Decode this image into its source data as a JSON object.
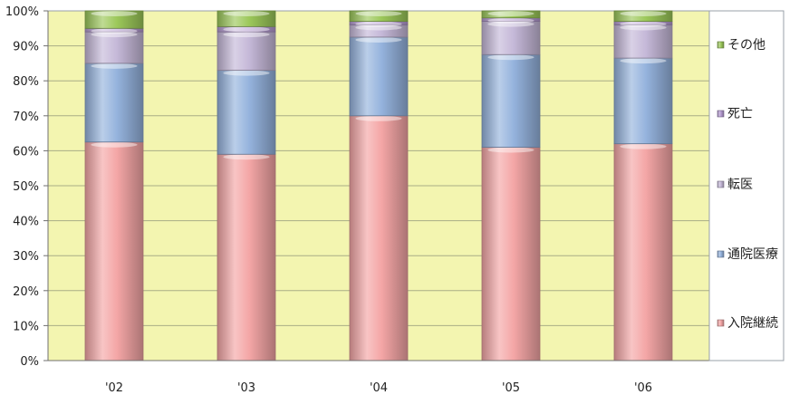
{
  "chart_data": {
    "type": "bar",
    "stacked": true,
    "orientation": "vertical",
    "categories": [
      "'02",
      "'03",
      "'04",
      "'05",
      "'06"
    ],
    "series": [
      {
        "name": "入院継続",
        "color": "#f4a6a6",
        "values": [
          62.5,
          59,
          70,
          61,
          62
        ]
      },
      {
        "name": "通院医療",
        "color": "#95b3dd",
        "values": [
          22.5,
          24,
          22.5,
          26.5,
          24.5
        ]
      },
      {
        "name": "転医",
        "color": "#c5b8d8",
        "values": [
          9,
          11,
          3.5,
          9.5,
          9.5
        ]
      },
      {
        "name": "死亡",
        "color": "#b49ad0",
        "values": [
          1,
          1.5,
          1,
          1,
          1
        ]
      },
      {
        "name": "その他",
        "color": "#9cc85a",
        "values": [
          5,
          4.5,
          3,
          2,
          3
        ]
      }
    ],
    "yticks": [
      "0%",
      "10%",
      "20%",
      "30%",
      "40%",
      "50%",
      "60%",
      "70%",
      "80%",
      "90%",
      "100%"
    ],
    "ylim": [
      0,
      100
    ],
    "legend_position": "right",
    "plot_background": "#f3f5b0",
    "grid": true
  }
}
